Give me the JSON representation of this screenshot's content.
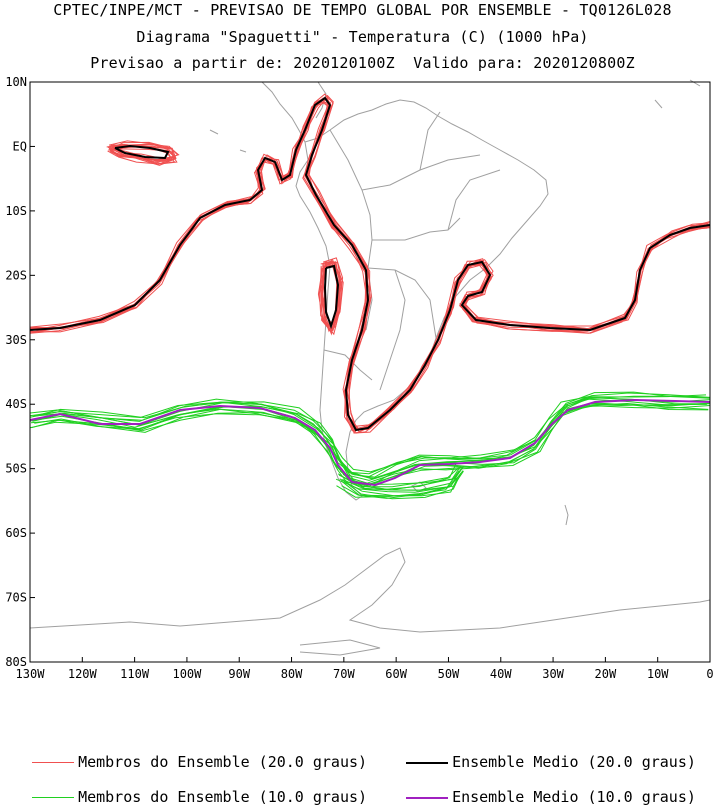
{
  "title": {
    "line1": "CPTEC/INPE/MCT - PREVISAO DE TEMPO GLOBAL POR ENSEMBLE - TQ0126L028",
    "line2": "Diagrama \"Spaguetti\" - Temperatura (C) (1000 hPa)",
    "line3": "Previsao a partir de: 2020120100Z  Valido para: 2020120800Z"
  },
  "axes": {
    "lat_labels": [
      "10N",
      "EQ",
      "10S",
      "20S",
      "30S",
      "40S",
      "50S",
      "60S",
      "70S",
      "80S"
    ],
    "lon_labels": [
      "130W",
      "120W",
      "110W",
      "100W",
      "90W",
      "80W",
      "70W",
      "60W",
      "50W",
      "40W",
      "30W",
      "20W",
      "10W",
      "0"
    ]
  },
  "legend": {
    "members_20": "Membros do Ensemble (20.0 graus)",
    "mean_20": "Ensemble Medio (20.0 graus)",
    "members_10": "Membros do Ensemble (10.0 graus)",
    "mean_10": "Ensemble Medio (10.0 graus)"
  },
  "colors": {
    "members_20": "#f05050",
    "mean_20": "#000000",
    "members_10": "#20d020",
    "mean_10": "#a020c0",
    "coast": "#a0a0a0"
  }
}
